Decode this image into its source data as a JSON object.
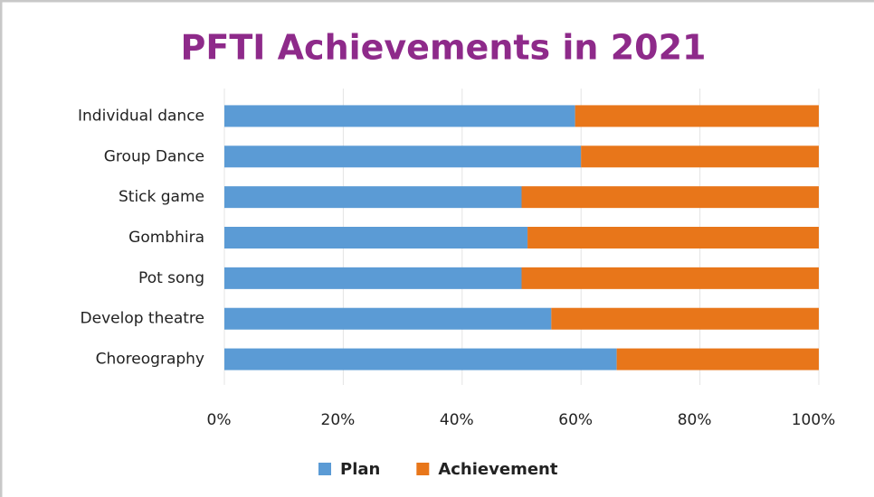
{
  "chart_data": {
    "type": "bar",
    "orientation": "horizontal",
    "stacked": true,
    "title": "PFTI Achievements in 2021",
    "categories": [
      "Individual dance",
      "Group Dance",
      "Stick game",
      "Gombhira",
      "Pot song",
      "Develop theatre",
      "Choreography"
    ],
    "series": [
      {
        "name": "Plan",
        "color": "#5b9bd5",
        "values": [
          59,
          60,
          50,
          51,
          50,
          55,
          66
        ]
      },
      {
        "name": "Achievement",
        "color": "#e8761a",
        "values": [
          41,
          40,
          50,
          49,
          50,
          45,
          34
        ]
      }
    ],
    "xlim": [
      0,
      100
    ],
    "xticks": [
      {
        "value": 0,
        "label": "0%"
      },
      {
        "value": 20,
        "label": "20%"
      },
      {
        "value": 40,
        "label": "40%"
      },
      {
        "value": 60,
        "label": "60%"
      },
      {
        "value": 80,
        "label": "80%"
      },
      {
        "value": 100,
        "label": "100%"
      }
    ],
    "grid": true,
    "legend": "bottom"
  }
}
